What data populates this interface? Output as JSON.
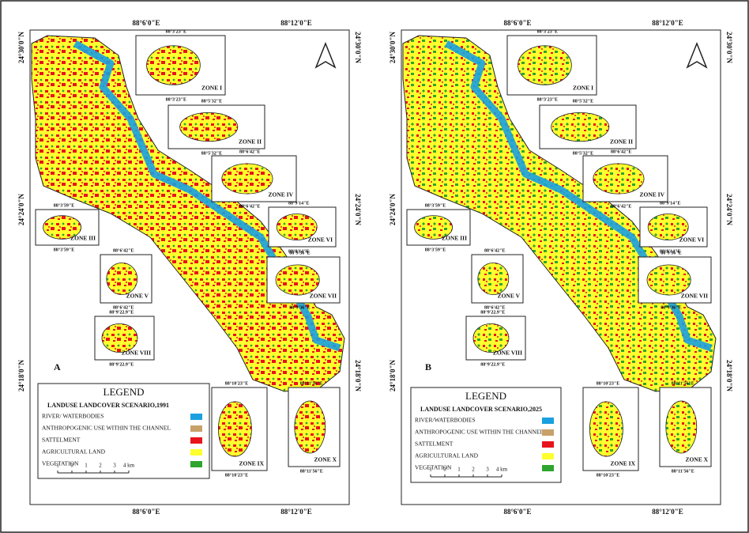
{
  "panels": [
    {
      "label": "A",
      "lon_labels": [
        "88°6'0\"E",
        "88°12'0\"E"
      ],
      "lat_labels": [
        "24°30'0\"N",
        "24°24'0\"N",
        "24°18'0\"N"
      ],
      "legend": {
        "heading": "LEGEND",
        "title": "LANDUSE LANDCOVER SCENARIO,1991",
        "items": [
          {
            "label": "RIVER/ WATERBODIES",
            "color": "#1aa0e0"
          },
          {
            "label": "ANTHROPOGENIC USE WITHIN THE CHANNEL",
            "color": "#c9a06a"
          },
          {
            "label": "SATTELMENT",
            "color": "#e8141c"
          },
          {
            "label": "AGRICULTURAL LAND",
            "color": "#ffff2e"
          },
          {
            "label": "VEGETATION",
            "color": "#2fa52f"
          }
        ]
      },
      "scale_labels": [
        "1",
        "0",
        "1",
        "2",
        "3",
        "4 km"
      ],
      "zones": [
        {
          "name": "ZONE I",
          "coord": "88°3'23\"E"
        },
        {
          "name": "ZONE II",
          "coord": "88°5'32\"E"
        },
        {
          "name": "ZONE IV",
          "coord": "88°6'42\"E"
        },
        {
          "name": "ZONE III",
          "coord": "88°3'59\"E"
        },
        {
          "name": "ZONE VI",
          "coord": "88°9'14\"E"
        },
        {
          "name": "ZONE V",
          "coord": "88°6'42\"E"
        },
        {
          "name": "ZONE VII",
          "coord": "88°9'36\"E"
        },
        {
          "name": "ZONE VIII",
          "coord": "88°9'22.9\"E"
        },
        {
          "name": "ZONE IX",
          "coord": "88°10'23\"E"
        },
        {
          "name": "ZONE X",
          "coord": "88°11'56\"E"
        }
      ]
    },
    {
      "label": "B",
      "lon_labels": [
        "88°6'0\"E",
        "88°12'0\"E"
      ],
      "lat_labels": [
        "24°30'0\"N",
        "24°24'0\"N",
        "24°18'0\"N"
      ],
      "legend": {
        "heading": "LEGEND",
        "title": "LANDUSE LANDCOVER SCENARIO,2025",
        "items": [
          {
            "label": "RIVER/WATERBODIES",
            "color": "#1aa0e0"
          },
          {
            "label": "ANTHROPOGENIC USE WITHIN THE CHANNEL",
            "color": "#c9a06a"
          },
          {
            "label": "SATTELMENT",
            "color": "#e8141c"
          },
          {
            "label": "AGRICULTURAL LAND",
            "color": "#ffff2e"
          },
          {
            "label": "VEGETATION",
            "color": "#2fa52f"
          }
        ]
      },
      "scale_labels": [
        "1",
        "0",
        "1",
        "2",
        "3",
        "4 km"
      ],
      "zones": [
        {
          "name": "ZONE I",
          "coord": "88°3'23\"E"
        },
        {
          "name": "ZONE II",
          "coord": "88°5'32\"E"
        },
        {
          "name": "ZONE IV",
          "coord": "88°6'42\"E"
        },
        {
          "name": "ZONE III",
          "coord": "88°3'59\"E"
        },
        {
          "name": "ZONE VI",
          "coord": "88°9'14\"E"
        },
        {
          "name": "ZONE V",
          "coord": "88°6'42\"E"
        },
        {
          "name": "ZONE VII",
          "coord": "88°9'36\"E"
        },
        {
          "name": "ZONE VIII",
          "coord": "88°9'22.9\"E"
        },
        {
          "name": "ZONE IX",
          "coord": "88°10'23\"E"
        },
        {
          "name": "ZONE X",
          "coord": "88°11'56\"E"
        }
      ]
    }
  ]
}
